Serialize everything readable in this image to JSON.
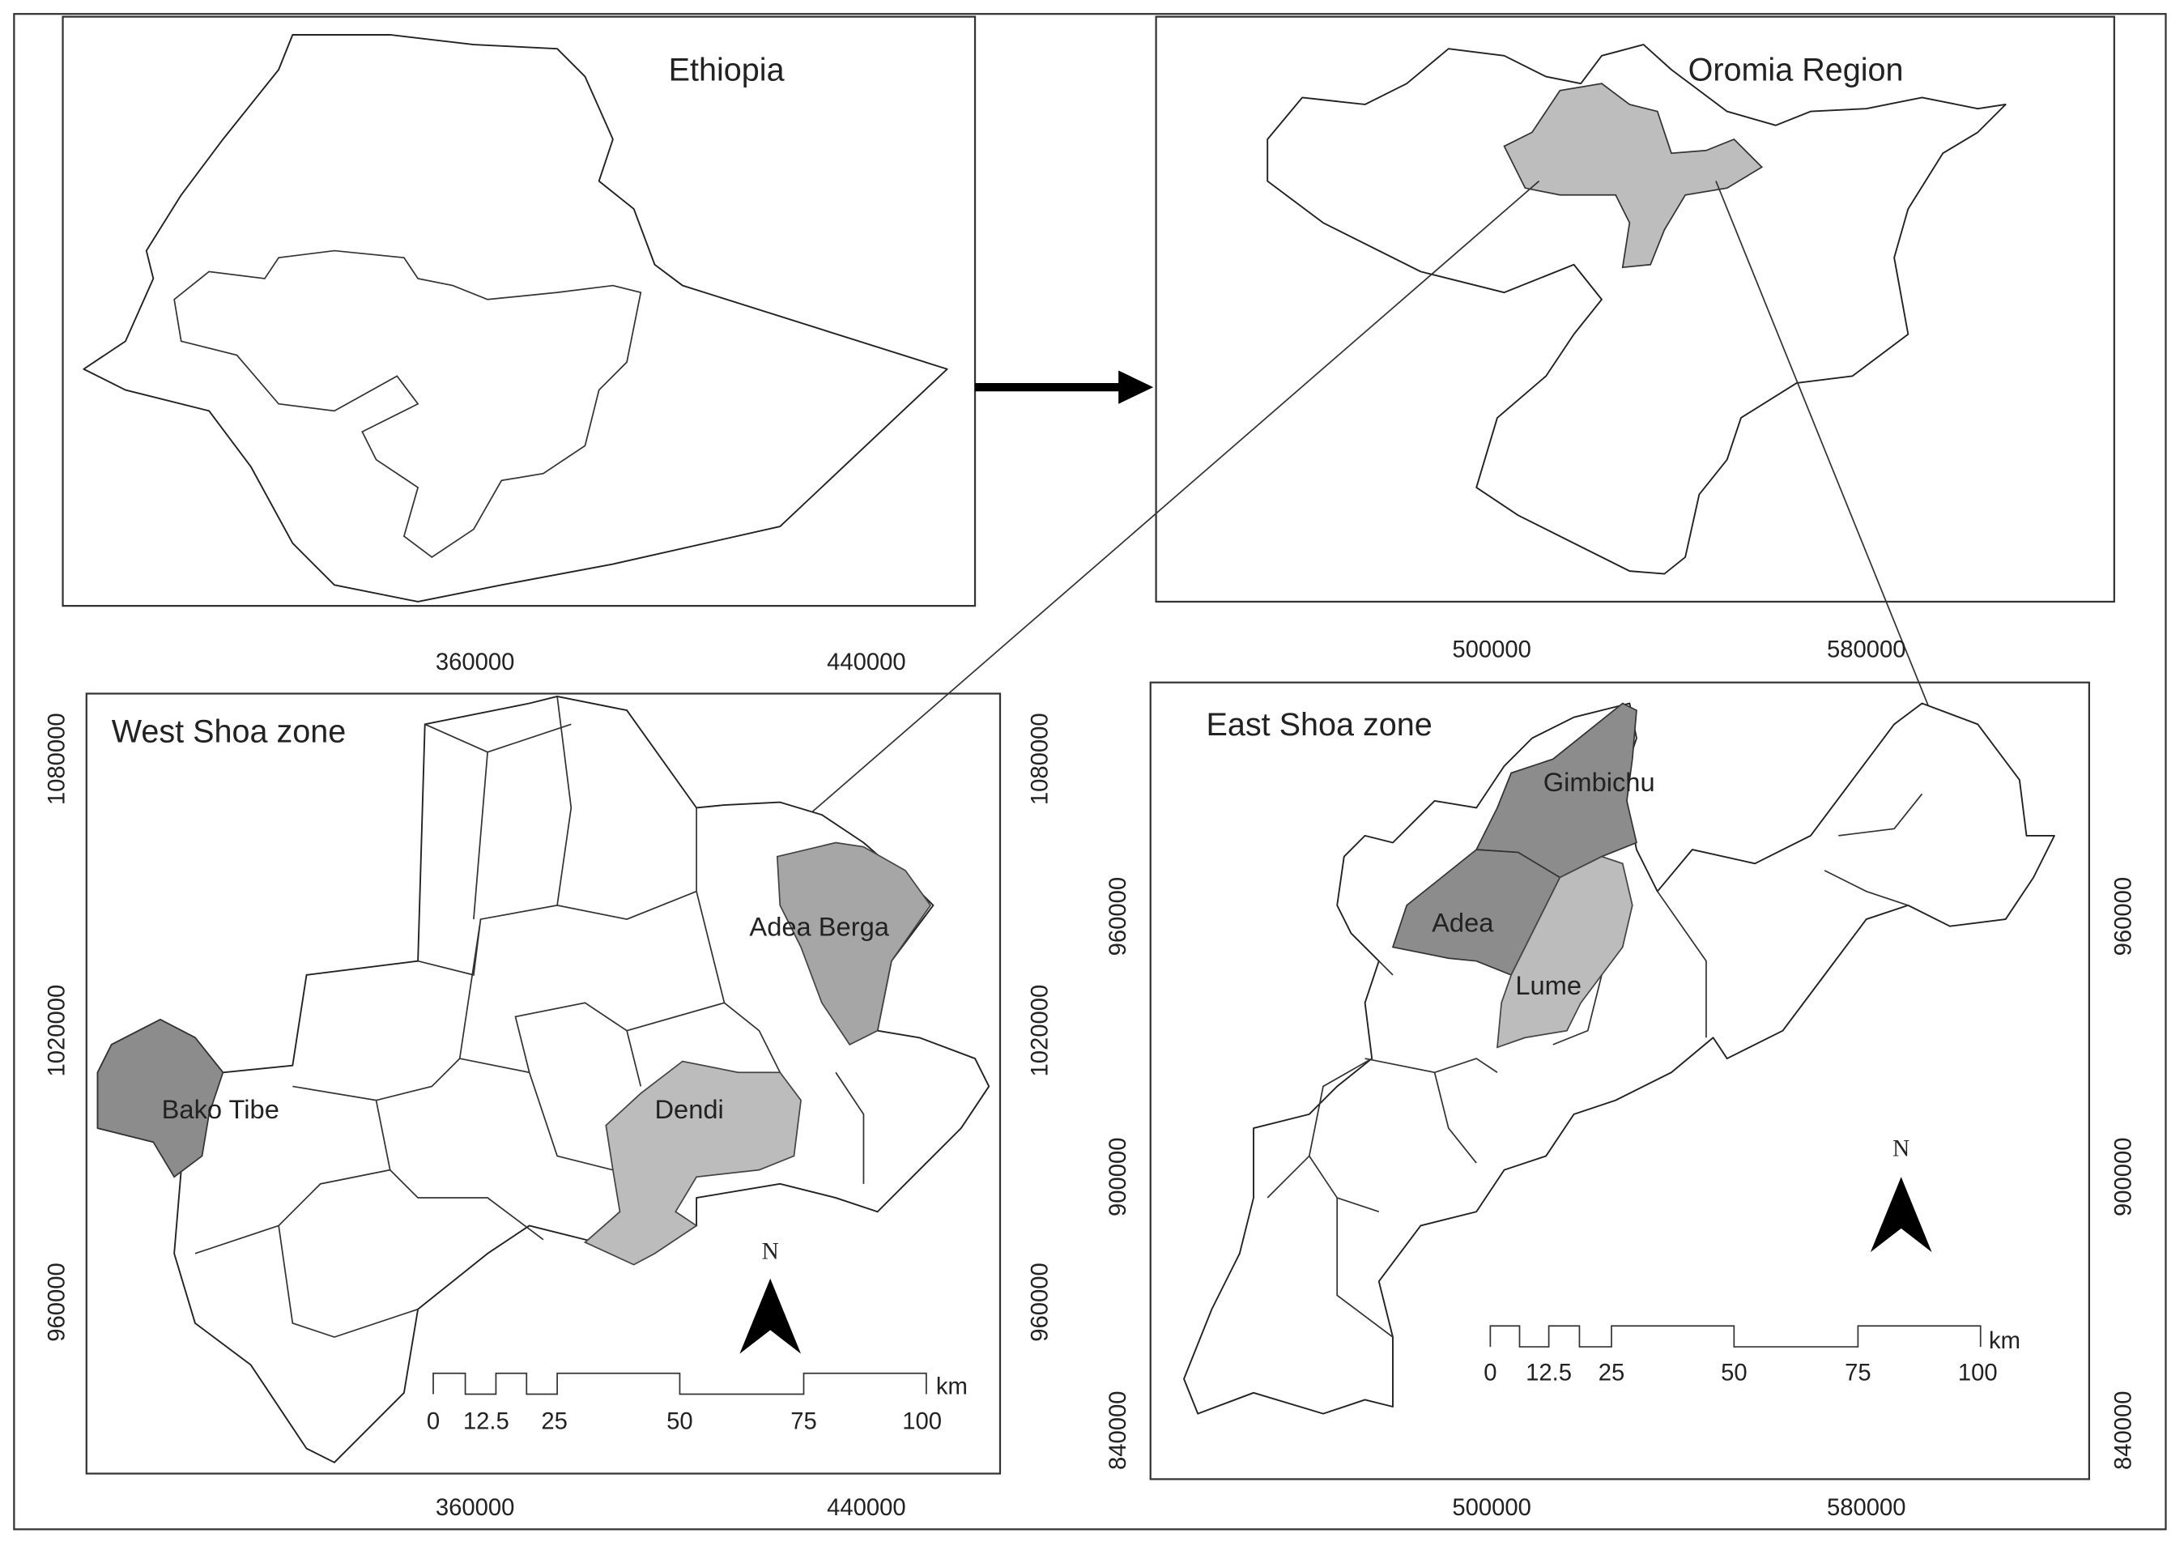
{
  "panels": {
    "ethiopia": {
      "title": "Ethiopia"
    },
    "oromia": {
      "title": "Oromia Region"
    },
    "west_shoa": {
      "title": "West Shoa zone",
      "districts": [
        "Adea Berga",
        "Bako Tibe",
        "Dendi"
      ],
      "x_ticks": [
        360000,
        440000
      ],
      "y_ticks": [
        1080000,
        1020000,
        960000
      ],
      "north": "N",
      "scale_bar": {
        "labels": [
          0,
          12.5,
          25,
          50,
          75,
          100
        ],
        "unit": "km"
      }
    },
    "east_shoa": {
      "title": "East Shoa zone",
      "districts": [
        "Gimbichu",
        "Adea",
        "Lume"
      ],
      "x_ticks": [
        500000,
        580000
      ],
      "y_ticks": [
        960000,
        900000,
        840000
      ],
      "north": "N",
      "scale_bar": {
        "labels": [
          0,
          12.5,
          25,
          50,
          75,
          100
        ],
        "unit": "km"
      }
    }
  }
}
